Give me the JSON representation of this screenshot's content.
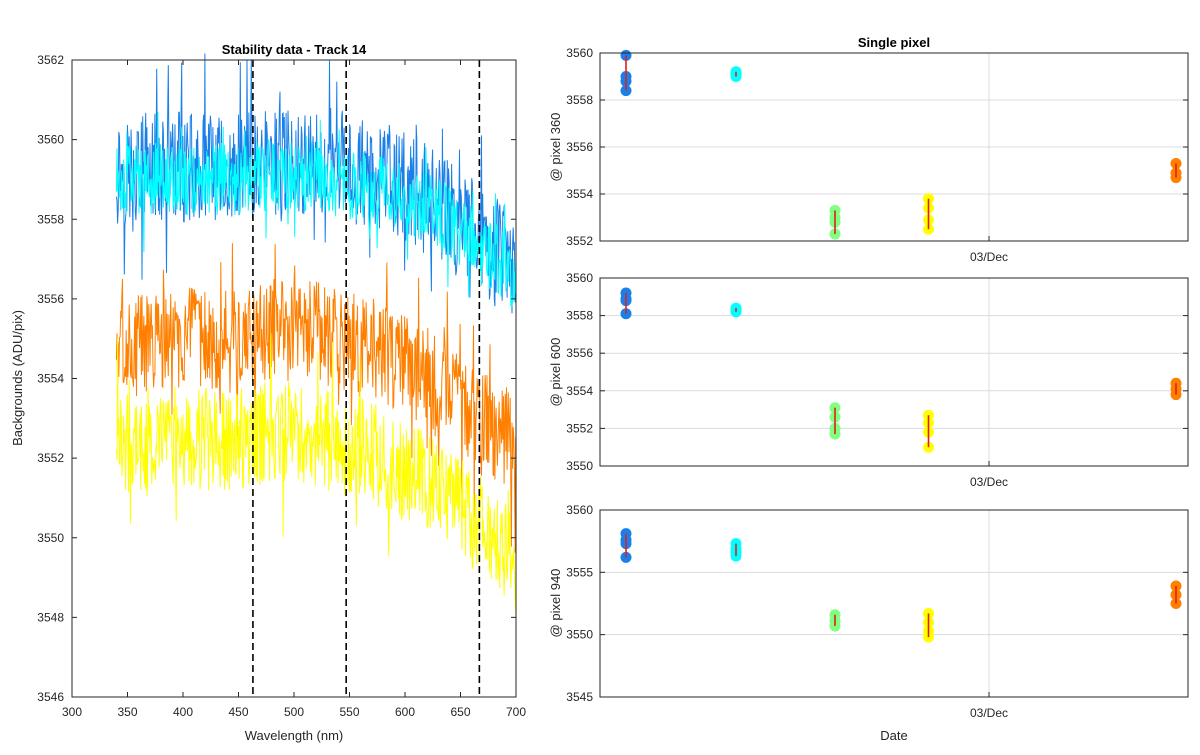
{
  "chart_data": [
    {
      "type": "line",
      "title": "Stability data - Track 14",
      "xlabel": "Wavelength (nm)",
      "ylabel": "Backgrounds (ADU/pix)",
      "xlim": [
        300,
        700
      ],
      "ylim": [
        3546,
        3562
      ],
      "xticks": [
        300,
        350,
        400,
        450,
        500,
        550,
        600,
        650,
        700
      ],
      "yticks": [
        3546,
        3548,
        3550,
        3552,
        3554,
        3556,
        3558,
        3560,
        3562
      ],
      "grid": false,
      "vlines": [
        463,
        547,
        667
      ],
      "series": [
        {
          "color": "#1a7fe8",
          "x": [
            340,
            375,
            410,
            445,
            480,
            515,
            550,
            585,
            620,
            655,
            690,
            700
          ],
          "mean": [
            3559.2,
            3559.3,
            3559.3,
            3559.2,
            3559.4,
            3559.5,
            3559.3,
            3559.0,
            3558.5,
            3557.8,
            3557.0,
            3556.8
          ],
          "noise": 1.4
        },
        {
          "color": "#00ffff",
          "x": [
            340,
            375,
            410,
            445,
            480,
            515,
            550,
            585,
            620,
            655,
            690,
            700
          ],
          "mean": [
            3559.0,
            3559.0,
            3559.0,
            3559.0,
            3559.1,
            3559.1,
            3558.9,
            3558.7,
            3558.3,
            3557.6,
            3556.8,
            3556.5
          ],
          "noise": 0.9
        },
        {
          "color": "#ff8000",
          "x": [
            340,
            375,
            410,
            445,
            480,
            515,
            550,
            585,
            620,
            655,
            690,
            700
          ],
          "mean": [
            3554.8,
            3554.9,
            3555.0,
            3554.9,
            3555.2,
            3555.2,
            3554.9,
            3554.6,
            3554.0,
            3553.2,
            3552.6,
            3552.2
          ],
          "noise": 1.3
        },
        {
          "color": "#ffff00",
          "x": [
            340,
            375,
            410,
            445,
            480,
            515,
            550,
            585,
            620,
            655,
            690,
            700
          ],
          "mean": [
            3552.4,
            3552.5,
            3552.5,
            3552.4,
            3552.7,
            3552.6,
            3552.3,
            3552.0,
            3551.3,
            3550.6,
            3549.8,
            3549.4
          ],
          "noise": 1.3
        }
      ]
    },
    {
      "type": "scatter",
      "title": "Single pixel",
      "xlabel": "",
      "ylabel": "@ pixel 360",
      "ylim": [
        3552,
        3560
      ],
      "yticks": [
        3552,
        3554,
        3556,
        3558,
        3560
      ],
      "xtick_label": "03/Dec",
      "grid": true,
      "groups": [
        {
          "color": "#1a7fe8",
          "t": 0.0,
          "points": [
            3559.9,
            3559.0,
            3558.8,
            3558.4
          ]
        },
        {
          "color": "#00ffff",
          "t": 0.2,
          "points": [
            3559.2,
            3559.0,
            3559.1
          ]
        },
        {
          "color": "#80ff80",
          "t": 0.38,
          "points": [
            3553.3,
            3553.0,
            3552.8,
            3552.3
          ]
        },
        {
          "color": "#ffff00",
          "t": 0.55,
          "points": [
            3553.8,
            3553.4,
            3552.9,
            3552.5
          ]
        },
        {
          "color": "#ff8000",
          "t": 1.0,
          "points": [
            3555.3,
            3554.9,
            3554.7
          ]
        }
      ]
    },
    {
      "type": "scatter",
      "title": "",
      "xlabel": "",
      "ylabel": "@ pixel 600",
      "ylim": [
        3550,
        3560
      ],
      "yticks": [
        3550,
        3552,
        3554,
        3556,
        3558,
        3560
      ],
      "xtick_label": "03/Dec",
      "grid": true,
      "groups": [
        {
          "color": "#1a7fe8",
          "t": 0.0,
          "points": [
            3559.2,
            3558.9,
            3558.8,
            3558.1
          ]
        },
        {
          "color": "#00ffff",
          "t": 0.2,
          "points": [
            3558.4,
            3558.2,
            3558.3
          ]
        },
        {
          "color": "#80ff80",
          "t": 0.38,
          "points": [
            3553.1,
            3552.6,
            3552.0,
            3551.7
          ]
        },
        {
          "color": "#ffff00",
          "t": 0.55,
          "points": [
            3552.7,
            3552.3,
            3551.8,
            3551.0
          ]
        },
        {
          "color": "#ff8000",
          "t": 1.0,
          "points": [
            3554.4,
            3554.1,
            3553.8
          ]
        }
      ]
    },
    {
      "type": "scatter",
      "title": "",
      "xlabel": "Date",
      "ylabel": "@ pixel 940",
      "ylim": [
        3545,
        3560
      ],
      "yticks": [
        3545,
        3550,
        3555,
        3560
      ],
      "xtick_label": "03/Dec",
      "grid": true,
      "groups": [
        {
          "color": "#1a7fe8",
          "t": 0.0,
          "points": [
            3558.1,
            3557.6,
            3557.3,
            3556.2
          ]
        },
        {
          "color": "#00ffff",
          "t": 0.2,
          "points": [
            3557.3,
            3556.9,
            3556.6,
            3556.3
          ]
        },
        {
          "color": "#80ff80",
          "t": 0.38,
          "points": [
            3551.6,
            3551.1,
            3550.7
          ]
        },
        {
          "color": "#ffff00",
          "t": 0.55,
          "points": [
            3551.7,
            3551.0,
            3550.3,
            3549.8
          ]
        },
        {
          "color": "#ff8000",
          "t": 1.0,
          "points": [
            3553.9,
            3553.2,
            3552.5
          ]
        }
      ]
    }
  ]
}
